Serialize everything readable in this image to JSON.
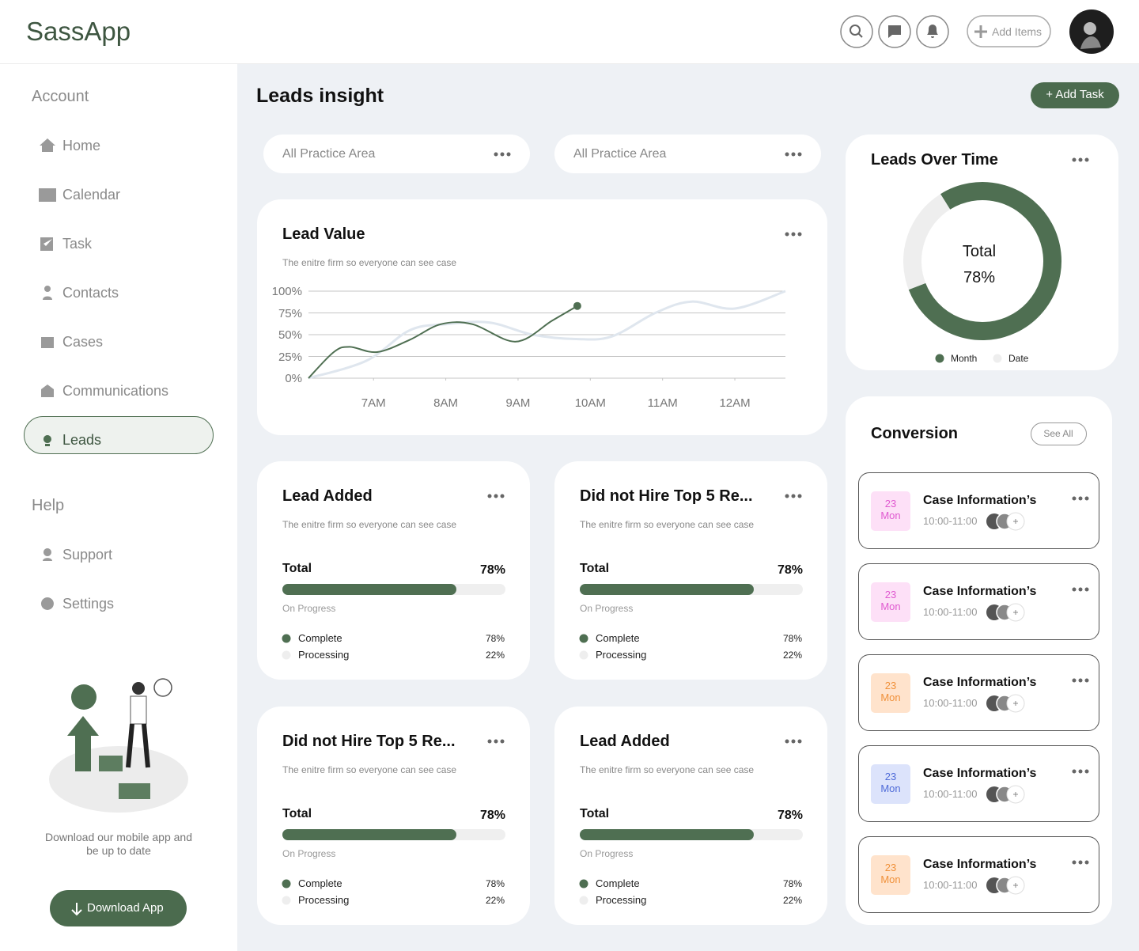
{
  "header": {
    "logo": "SassApp",
    "add_items": "Add Items"
  },
  "sidebar": {
    "sections": [
      {
        "label": "Account",
        "items": [
          {
            "label": "Home"
          },
          {
            "label": "Calendar"
          },
          {
            "label": "Task"
          },
          {
            "label": "Contacts"
          },
          {
            "label": "Cases"
          },
          {
            "label": "Communications"
          },
          {
            "label": "Leads",
            "active": true
          }
        ]
      },
      {
        "label": "Help",
        "items": [
          {
            "label": "Support"
          },
          {
            "label": "Settings"
          }
        ]
      }
    ],
    "promo": {
      "text": "Download our mobile app and be up to date",
      "button": "Download App"
    }
  },
  "main": {
    "title": "Leads insight",
    "add_task": "+ Add Task",
    "filters": [
      "All Practice Area",
      "All Practice Area"
    ]
  },
  "chart_data": [
    {
      "type": "line",
      "title": "Lead Value",
      "subtitle": "The enitre firm so everyone can see case",
      "xlim": [
        6.1,
        12.7
      ],
      "xticks": [
        {
          "value": 7,
          "label": "7AM"
        },
        {
          "value": 8,
          "label": "8AM"
        },
        {
          "value": 9,
          "label": "9AM"
        },
        {
          "value": 10,
          "label": "10AM"
        },
        {
          "value": 11,
          "label": "11AM"
        },
        {
          "value": 12,
          "label": "12AM"
        }
      ],
      "ylim": [
        0,
        100
      ],
      "yticks": [
        {
          "value": 0,
          "label": "0%"
        },
        {
          "value": 25,
          "label": "25%"
        },
        {
          "value": 50,
          "label": "50%"
        },
        {
          "value": 75,
          "label": "75%"
        },
        {
          "value": 100,
          "label": "100%"
        }
      ],
      "grid": true,
      "series": [
        {
          "color": "#dfe6ee",
          "x": [
            6.1,
            6.9,
            7.5,
            8.0,
            8.6,
            9.2,
            9.8,
            10.3,
            10.9,
            11.4,
            12.0,
            12.7
          ],
          "values": [
            0,
            20,
            55,
            62,
            64,
            50,
            45,
            48,
            75,
            88,
            80,
            100
          ]
        },
        {
          "color": "#4f6f52",
          "end_marker": true,
          "x": [
            6.1,
            6.45,
            6.67,
            7.05,
            7.5,
            7.93,
            8.37,
            8.97,
            9.47,
            9.82
          ],
          "values": [
            0,
            30,
            36,
            30,
            44,
            62,
            62,
            42,
            66,
            83
          ]
        }
      ]
    },
    {
      "type": "donut",
      "title": "Leads Over Time",
      "center_title": "Total",
      "center_label": "78%",
      "categories": [
        "Month",
        "Date"
      ],
      "values": [
        78,
        22
      ],
      "colors": [
        "#4f6f52",
        "#eeeeee"
      ]
    }
  ],
  "cards": [
    {
      "title": "Lead Added",
      "subtitle": "The enitre firm so everyone can see case",
      "progress": {
        "label": "Total",
        "value": 78,
        "value_label": "78%",
        "caption": "On Progress",
        "color": "#4f6f52"
      },
      "legend": [
        {
          "name": "Complete",
          "label": "78%",
          "color": "#4f6f52"
        },
        {
          "name": "Processing",
          "label": "22%",
          "color": "#eeeeee"
        }
      ]
    },
    {
      "title": "Did not Hire Top 5 Re...",
      "subtitle": "The enitre firm so everyone can see case",
      "progress": {
        "label": "Total",
        "value": 78,
        "value_label": "78%",
        "caption": "On Progress",
        "color": "#4f6f52"
      },
      "legend": [
        {
          "name": "Complete",
          "label": "78%",
          "color": "#4f6f52"
        },
        {
          "name": "Processing",
          "label": "22%",
          "color": "#eeeeee"
        }
      ]
    },
    {
      "title": "Did not Hire Top 5 Re...",
      "subtitle": "The enitre firm so everyone can see case",
      "progress": {
        "label": "Total",
        "value": 78,
        "value_label": "78%",
        "caption": "On Progress",
        "color": "#4f6f52"
      },
      "legend": [
        {
          "name": "Complete",
          "label": "78%",
          "color": "#4f6f52"
        },
        {
          "name": "Processing",
          "label": "22%",
          "color": "#eeeeee"
        }
      ]
    },
    {
      "title": "Lead Added",
      "subtitle": "The enitre firm so everyone can see case",
      "progress": {
        "label": "Total",
        "value": 78,
        "value_label": "78%",
        "caption": "On Progress",
        "color": "#4f6f52"
      },
      "legend": [
        {
          "name": "Complete",
          "label": "78%",
          "color": "#4f6f52"
        },
        {
          "name": "Processing",
          "label": "22%",
          "color": "#eeeeee"
        }
      ]
    }
  ],
  "conversion": {
    "title": "Conversion",
    "see_all": "See All",
    "items": [
      {
        "day": 23,
        "weekday": "Mon",
        "title": "Case Information’s",
        "time": "10:00-11:00",
        "color": "#e05ad0",
        "bg": "#fde0f7"
      },
      {
        "day": 23,
        "weekday": "Mon",
        "title": "Case Information’s",
        "time": "10:00-11:00",
        "color": "#e05ad0",
        "bg": "#fde0f7"
      },
      {
        "day": 23,
        "weekday": "Mon",
        "title": "Case Information’s",
        "time": "10:00-11:00",
        "color": "#f0913a",
        "bg": "#ffe3cc"
      },
      {
        "day": 23,
        "weekday": "Mon",
        "title": "Case Information’s",
        "time": "10:00-11:00",
        "color": "#4f6bd8",
        "bg": "#dce3fb"
      },
      {
        "day": 23,
        "weekday": "Mon",
        "title": "Case Information’s",
        "time": "10:00-11:00",
        "color": "#f0913a",
        "bg": "#ffe3cc"
      }
    ]
  }
}
